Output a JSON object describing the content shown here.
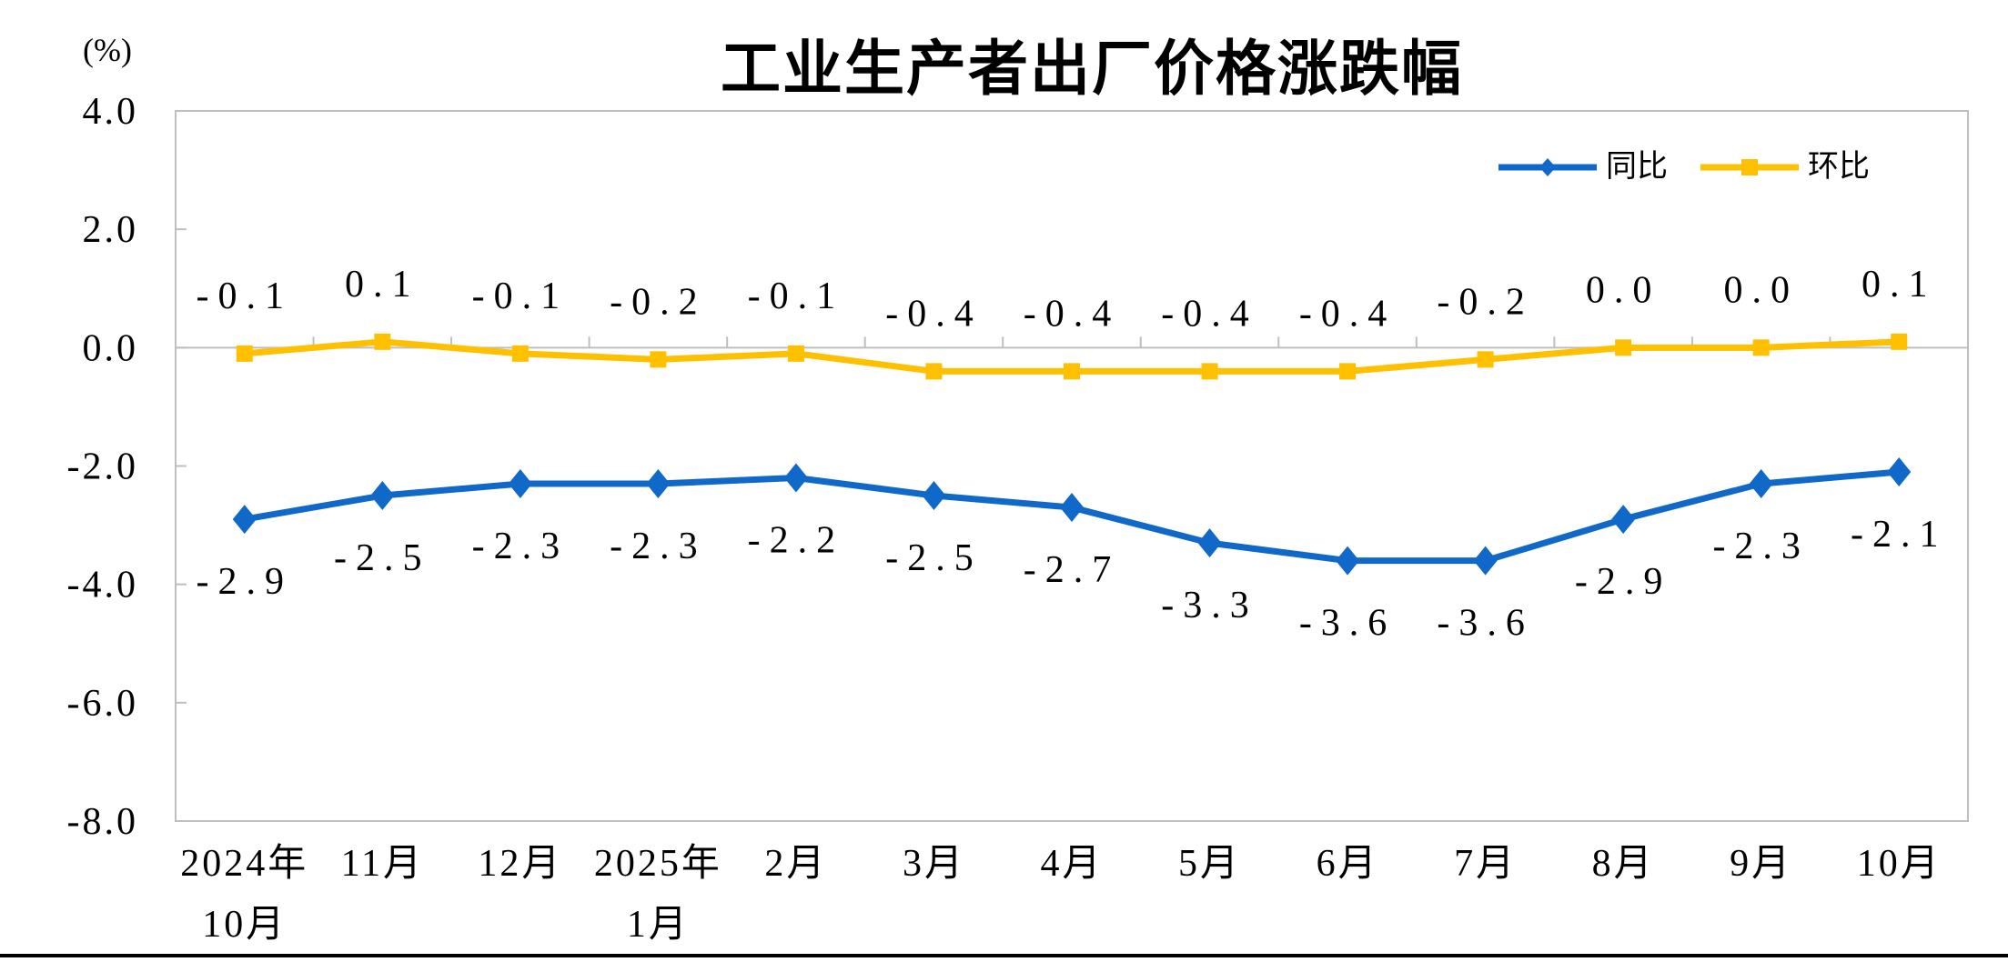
{
  "chart_data": {
    "type": "line",
    "title": "工业生产者出厂价格涨跌幅",
    "unit_label": "(%)",
    "categories": [
      "2024年\n10月",
      "11月",
      "12月",
      "2025年\n1月",
      "2月",
      "3月",
      "4月",
      "5月",
      "6月",
      "7月",
      "8月",
      "9月",
      "10月"
    ],
    "ylim": [
      -8,
      4
    ],
    "y_ticks": [
      {
        "label": "4.0",
        "value": 4
      },
      {
        "label": "2.0",
        "value": 2
      },
      {
        "label": "0.0",
        "value": 0
      },
      {
        "label": "-2.0",
        "value": -2
      },
      {
        "label": "-4.0",
        "value": -4
      },
      {
        "label": "-6.0",
        "value": -6
      },
      {
        "label": "-8.0",
        "value": -8
      }
    ],
    "grid": "zero-line-only",
    "legend_position": "top-right-inside",
    "axis_color": "#BFBFBF",
    "text_color": "#000000",
    "series": [
      {
        "name": "同比",
        "color": "#1068C9",
        "marker": "diamond",
        "label_position": "below",
        "values": [
          -2.9,
          -2.5,
          -2.3,
          -2.3,
          -2.2,
          -2.5,
          -2.7,
          -3.3,
          -3.6,
          -3.6,
          -2.9,
          -2.3,
          -2.1
        ],
        "labels": [
          "-2.9",
          "-2.5",
          "-2.3",
          "-2.3",
          "-2.2",
          "-2.5",
          "-2.7",
          "-3.3",
          "-3.6",
          "-3.6",
          "-2.9",
          "-2.3",
          "-2.1"
        ]
      },
      {
        "name": "环比",
        "color": "#FFC000",
        "marker": "square",
        "label_position": "above",
        "values": [
          -0.1,
          0.1,
          -0.1,
          -0.2,
          -0.1,
          -0.4,
          -0.4,
          -0.4,
          -0.4,
          -0.2,
          0.0,
          0.0,
          0.1
        ],
        "labels": [
          "-0.1",
          "0.1",
          "-0.1",
          "-0.2",
          "-0.1",
          "-0.4",
          "-0.4",
          "-0.4",
          "-0.4",
          "-0.2",
          "0.0",
          "0.0",
          "0.1"
        ]
      }
    ]
  }
}
